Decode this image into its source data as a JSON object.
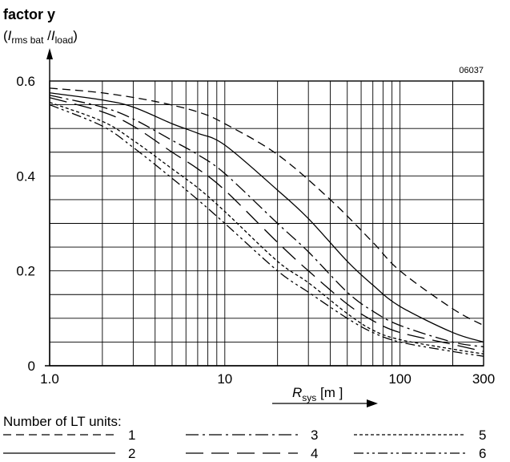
{
  "chart_data": {
    "type": "line",
    "title": "factor y",
    "ylabel": {
      "open": "(",
      "i1": "I",
      "sub1": "rms bat",
      "slash": " /",
      "i2": "I",
      "sub2": "load",
      "close": ")"
    },
    "xlabel": {
      "r": "R",
      "sub": "sys",
      "unit": " [m ]"
    },
    "figure_id": "06037",
    "x_scale": "log",
    "xlim": [
      1.0,
      300
    ],
    "ylim": [
      0,
      0.6
    ],
    "x_ticks": [
      {
        "value": 1.0,
        "label": "1.0"
      },
      {
        "value": 10,
        "label": "10"
      },
      {
        "value": 100,
        "label": "100"
      },
      {
        "value": 300,
        "label": "300"
      }
    ],
    "y_ticks": [
      {
        "value": 0,
        "label": "0"
      },
      {
        "value": 0.2,
        "label": "0.2"
      },
      {
        "value": 0.4,
        "label": "0.4"
      },
      {
        "value": 0.6,
        "label": "0.6"
      }
    ],
    "grid": true,
    "legend_title": "Number of LT units:",
    "legend_position": "bottom",
    "series": [
      {
        "name": "1",
        "dash": "dashed",
        "x": [
          1,
          2,
          4,
          7,
          10,
          20,
          40,
          70,
          100,
          200,
          300
        ],
        "y": [
          0.585,
          0.575,
          0.557,
          0.535,
          0.51,
          0.445,
          0.35,
          0.26,
          0.2,
          0.12,
          0.085
        ]
      },
      {
        "name": "2",
        "dash": "solid",
        "x": [
          1,
          2,
          3,
          5,
          7,
          10,
          20,
          30,
          50,
          70,
          100,
          200,
          300
        ],
        "y": [
          0.575,
          0.56,
          0.545,
          0.51,
          0.49,
          0.465,
          0.37,
          0.31,
          0.22,
          0.17,
          0.125,
          0.07,
          0.05
        ]
      },
      {
        "name": "3",
        "dash": "dash-dot",
        "x": [
          1,
          2,
          3,
          5,
          7,
          10,
          20,
          30,
          50,
          70,
          100,
          200,
          300
        ],
        "y": [
          0.57,
          0.545,
          0.52,
          0.475,
          0.445,
          0.405,
          0.3,
          0.24,
          0.155,
          0.115,
          0.085,
          0.05,
          0.04
        ]
      },
      {
        "name": "4",
        "dash": "long-dash",
        "x": [
          1,
          2,
          3,
          5,
          7,
          10,
          20,
          30,
          50,
          70,
          100,
          200,
          300
        ],
        "y": [
          0.565,
          0.535,
          0.505,
          0.45,
          0.415,
          0.37,
          0.26,
          0.2,
          0.13,
          0.095,
          0.07,
          0.045,
          0.03
        ]
      },
      {
        "name": "5",
        "dash": "dotted",
        "x": [
          1,
          2,
          3,
          5,
          7,
          10,
          20,
          30,
          50,
          70,
          100,
          200,
          300
        ],
        "y": [
          0.555,
          0.515,
          0.475,
          0.415,
          0.375,
          0.325,
          0.22,
          0.175,
          0.11,
          0.075,
          0.055,
          0.035,
          0.025
        ]
      },
      {
        "name": "6",
        "dash": "dash-dot-dot",
        "x": [
          1,
          2,
          3,
          5,
          7,
          10,
          20,
          30,
          50,
          70,
          100,
          200,
          300
        ],
        "y": [
          0.55,
          0.505,
          0.46,
          0.395,
          0.35,
          0.3,
          0.2,
          0.155,
          0.1,
          0.07,
          0.05,
          0.03,
          0.02
        ]
      }
    ]
  }
}
